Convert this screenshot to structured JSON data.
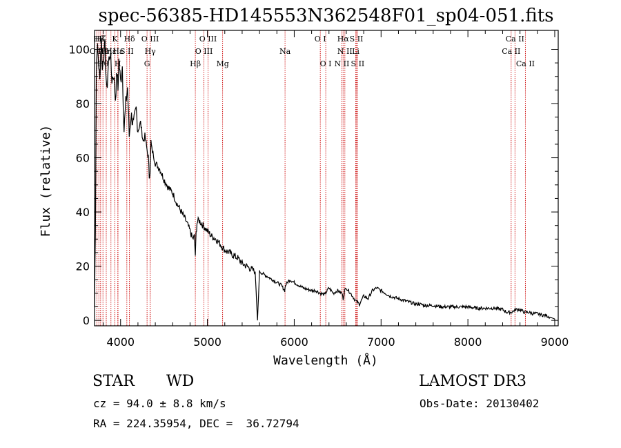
{
  "chart_data": {
    "type": "line",
    "title": "spec-56385-HD145553N362548F01_sp04-051.fits",
    "xlabel": "Wavelength (Å)",
    "ylabel": "Flux (relative)",
    "xlim": [
      3700,
      9040
    ],
    "ylim": [
      -2,
      107
    ],
    "xticks": [
      4000,
      5000,
      6000,
      7000,
      8000,
      9000
    ],
    "yticks": [
      0,
      20,
      40,
      60,
      80,
      100
    ],
    "series": [
      {
        "name": "flux",
        "x": [
          3700,
          3710,
          3720,
          3730,
          3740,
          3750,
          3760,
          3770,
          3780,
          3790,
          3800,
          3820,
          3840,
          3860,
          3880,
          3900,
          3920,
          3940,
          3960,
          3970,
          3980,
          4000,
          4020,
          4040,
          4060,
          4080,
          4100,
          4120,
          4150,
          4180,
          4200,
          4230,
          4260,
          4280,
          4300,
          4320,
          4330,
          4340,
          4350,
          4360,
          4380,
          4400,
          4450,
          4500,
          4550,
          4600,
          4650,
          4700,
          4750,
          4800,
          4830,
          4850,
          4861,
          4870,
          4880,
          4900,
          4950,
          5000,
          5050,
          5100,
          5150,
          5200,
          5250,
          5300,
          5350,
          5400,
          5450,
          5500,
          5550,
          5577,
          5600,
          5650,
          5700,
          5750,
          5800,
          5850,
          5890,
          5900,
          5920,
          5950,
          6000,
          6050,
          6100,
          6150,
          6200,
          6250,
          6300,
          6350,
          6400,
          6450,
          6500,
          6550,
          6563,
          6580,
          6600,
          6650,
          6700,
          6750,
          6800,
          6850,
          6900,
          6950,
          7000,
          7050,
          7100,
          7150,
          7200,
          7250,
          7300,
          7350,
          7400,
          7450,
          7500,
          7600,
          7700,
          7800,
          7900,
          8000,
          8100,
          8200,
          8300,
          8400,
          8450,
          8500,
          8550,
          8600,
          8650,
          8700,
          8750,
          8800,
          8850,
          8900,
          8950,
          9000
        ],
        "y": [
          5,
          35,
          90,
          102,
          98,
          94,
          88,
          99,
          103,
          92,
          97,
          101,
          84,
          95,
          99,
          89,
          91,
          82,
          92,
          85,
          96,
          88,
          94,
          70,
          80,
          86,
          68,
          76,
          72,
          78,
          70,
          73,
          66,
          68,
          64,
          60,
          53,
          55,
          66,
          63,
          61,
          58,
          56,
          52,
          49,
          47,
          43,
          40,
          37,
          33,
          30,
          31,
          24,
          32,
          36,
          37,
          35,
          33,
          31,
          30,
          28,
          26,
          25,
          24,
          23,
          21,
          20,
          19,
          18,
          0,
          18,
          17,
          16,
          15,
          14,
          13,
          11,
          13,
          14,
          15,
          14,
          13,
          12,
          11.5,
          11,
          11,
          10,
          9.5,
          12,
          10,
          11,
          10,
          8,
          11,
          12,
          10,
          7.5,
          6,
          9,
          8,
          11,
          12,
          11,
          10,
          9,
          8.5,
          8,
          7.5,
          7,
          6.5,
          6,
          6,
          5.5,
          5.5,
          5,
          5,
          5,
          5,
          4.5,
          4.5,
          4.5,
          4,
          3,
          3,
          4,
          4,
          3,
          3,
          2.5,
          2.5,
          2,
          1.8,
          1.2,
          0.5
        ]
      }
    ],
    "line_markers": [
      {
        "label": "Hβ",
        "wavelength": 3750,
        "row": 0
      },
      {
        "label": "O II",
        "wavelength": 3727,
        "row": 1
      },
      {
        "label": "Hθ",
        "wavelength": 3797,
        "row": 2
      },
      {
        "label": "Hζ",
        "wavelength": 3770,
        "row": 0
      },
      {
        "label": "Hη",
        "wavelength": 3835,
        "row": 1
      },
      {
        "label": "Hε",
        "wavelength": 3889,
        "row": 1
      },
      {
        "label": "K",
        "wavelength": 3934,
        "row": 0
      },
      {
        "label": "Hε",
        "wavelength": 3970,
        "row": 1
      },
      {
        "label": "H",
        "wavelength": 3968,
        "row": 2
      },
      {
        "label": "Hδ",
        "wavelength": 4102,
        "row": 0
      },
      {
        "label": "S II",
        "wavelength": 4072,
        "row": 1
      },
      {
        "label": "O III",
        "wavelength": 4340,
        "row": 0
      },
      {
        "label": "Hγ",
        "wavelength": 4341,
        "row": 1
      },
      {
        "label": "G",
        "wavelength": 4305,
        "row": 2
      },
      {
        "label": "O III",
        "wavelength": 5007,
        "row": 0
      },
      {
        "label": "O III",
        "wavelength": 4960,
        "row": 1
      },
      {
        "label": "Hβ",
        "wavelength": 4861,
        "row": 2
      },
      {
        "label": "Mg",
        "wavelength": 5175,
        "row": 2
      },
      {
        "label": "Na",
        "wavelength": 5894,
        "row": 1
      },
      {
        "label": "O I",
        "wavelength": 6300,
        "row": 0
      },
      {
        "label": "O I",
        "wavelength": 6363,
        "row": 2
      },
      {
        "label": "Hα",
        "wavelength": 6563,
        "row": 0
      },
      {
        "label": "N II",
        "wavelength": 6583,
        "row": 1
      },
      {
        "label": "N II",
        "wavelength": 6548,
        "row": 2
      },
      {
        "label": "S II",
        "wavelength": 6716,
        "row": 0
      },
      {
        "label": "Li",
        "wavelength": 6708,
        "row": 1
      },
      {
        "label": "S II",
        "wavelength": 6731,
        "row": 2
      },
      {
        "label": "Ca II",
        "wavelength": 8542,
        "row": 0
      },
      {
        "label": "Ca II",
        "wavelength": 8498,
        "row": 1
      },
      {
        "label": "Ca II",
        "wavelength": 8662,
        "row": 2
      }
    ]
  },
  "info": {
    "class_label": "STAR",
    "subclass": "WD",
    "survey": "LAMOST DR3",
    "cz_line": "cz = 94.0 ± 8.8 km/s",
    "obs_date_line": "Obs-Date: 20130402",
    "coords_line": "RA = 224.35954, DEC =  36.72794"
  },
  "colors": {
    "line": "#000000",
    "marker": "#cc0000"
  }
}
